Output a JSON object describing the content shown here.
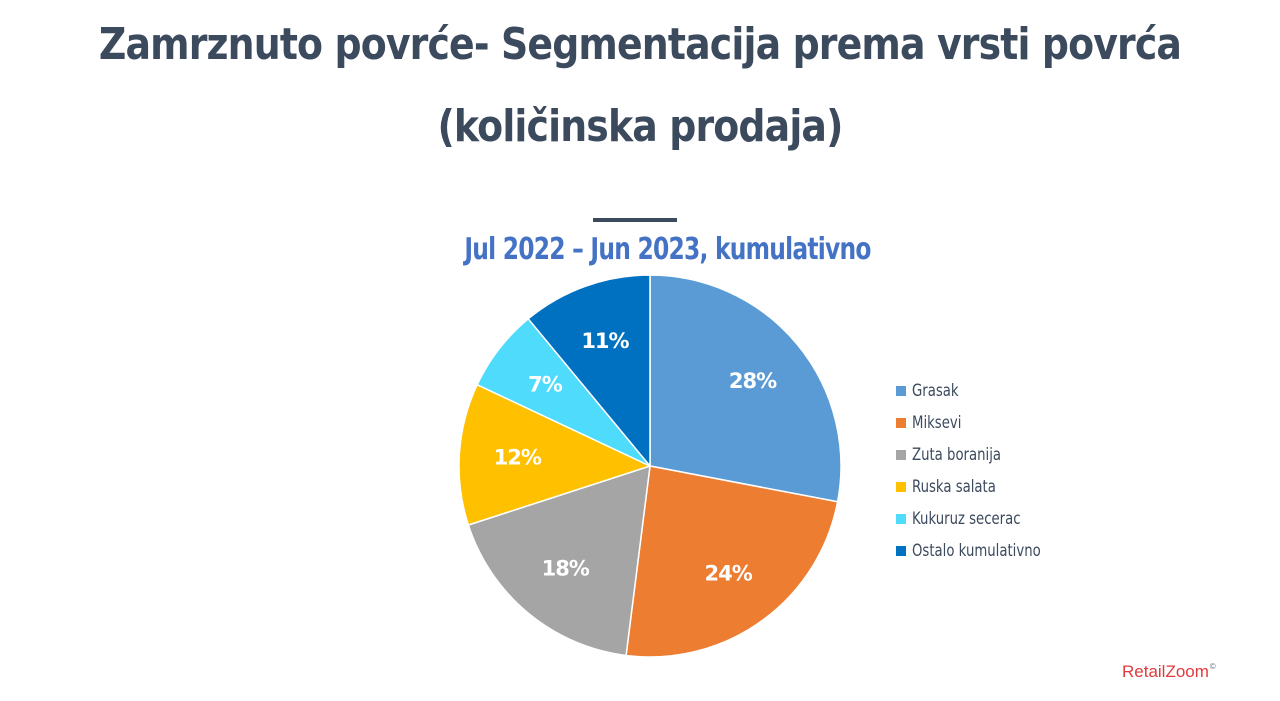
{
  "page": {
    "title_line1": "Zamrznuto povrće- Segmentacija prema vrsti povrća",
    "title_line2": "(količinska prodaja)",
    "brand": "RetailZoom",
    "brand_mark": "©"
  },
  "chart_data": {
    "type": "pie",
    "title": "Jul 2022 – Jun 2023, kumulativno",
    "legend_position": "right",
    "slices": [
      {
        "label": "Grasak",
        "value": 28,
        "display": "28%",
        "color": "#5b9bd5"
      },
      {
        "label": "Miksevi",
        "value": 24,
        "display": "24%",
        "color": "#ed7d31"
      },
      {
        "label": "Zuta boranija",
        "value": 18,
        "display": "18%",
        "color": "#a5a5a5"
      },
      {
        "label": "Ruska salata",
        "value": 12,
        "display": "12%",
        "color": "#ffc000"
      },
      {
        "label": "Kukuruz secerac",
        "value": 7,
        "display": "7%",
        "color": "#4fdcfc"
      },
      {
        "label": "Ostalo kumulativno",
        "value": 11,
        "display": "11%",
        "color": "#0070c0"
      }
    ]
  }
}
